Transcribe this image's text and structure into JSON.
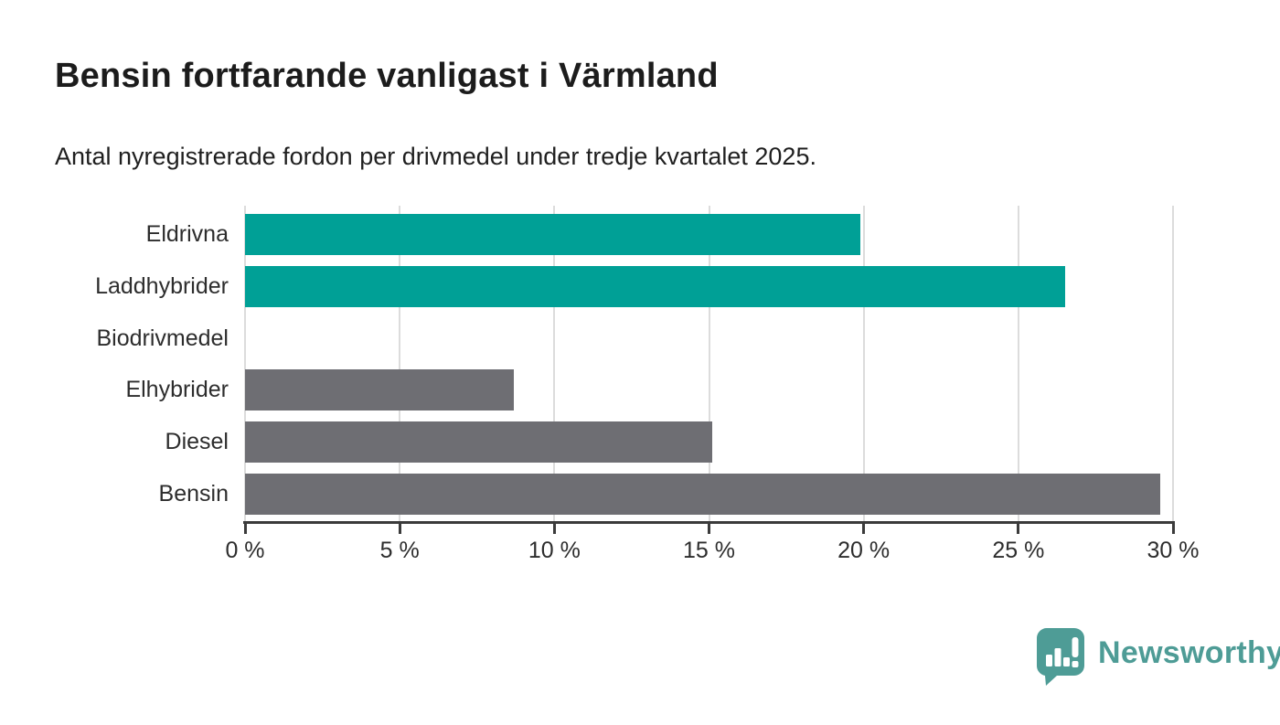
{
  "header": {
    "title": "Bensin fortfarande vanligast i Värmland",
    "subtitle": "Antal nyregistrerade fordon per drivmedel under tredje kvartalet 2025."
  },
  "chart_data": {
    "type": "bar",
    "orientation": "horizontal",
    "title": "Bensin fortfarande vanligast i Värmland",
    "subtitle": "Antal nyregistrerade fordon per drivmedel under tredje kvartalet 2025.",
    "categories": [
      "Eldrivna",
      "Laddhybrider",
      "Biodrivmedel",
      "Elhybrider",
      "Diesel",
      "Bensin"
    ],
    "values": [
      19.9,
      26.5,
      0,
      8.7,
      15.1,
      29.6
    ],
    "unit": "%",
    "bar_colors": [
      "#00a096",
      "#00a096",
      "#6e6e73",
      "#6e6e73",
      "#6e6e73",
      "#6e6e73"
    ],
    "highlight_color": "#00a096",
    "default_color": "#6e6e73",
    "xlim": [
      0,
      30
    ],
    "x_tick_values": [
      0,
      5,
      10,
      15,
      20,
      25,
      30
    ],
    "x_tick_labels": [
      "0 %",
      "5 %",
      "10 %",
      "15 %",
      "20 %",
      "25 %",
      "30 %"
    ],
    "grid": true,
    "legend": false
  },
  "footer": {
    "brand": "Newsworthy",
    "brand_color": "#4e9c96"
  }
}
